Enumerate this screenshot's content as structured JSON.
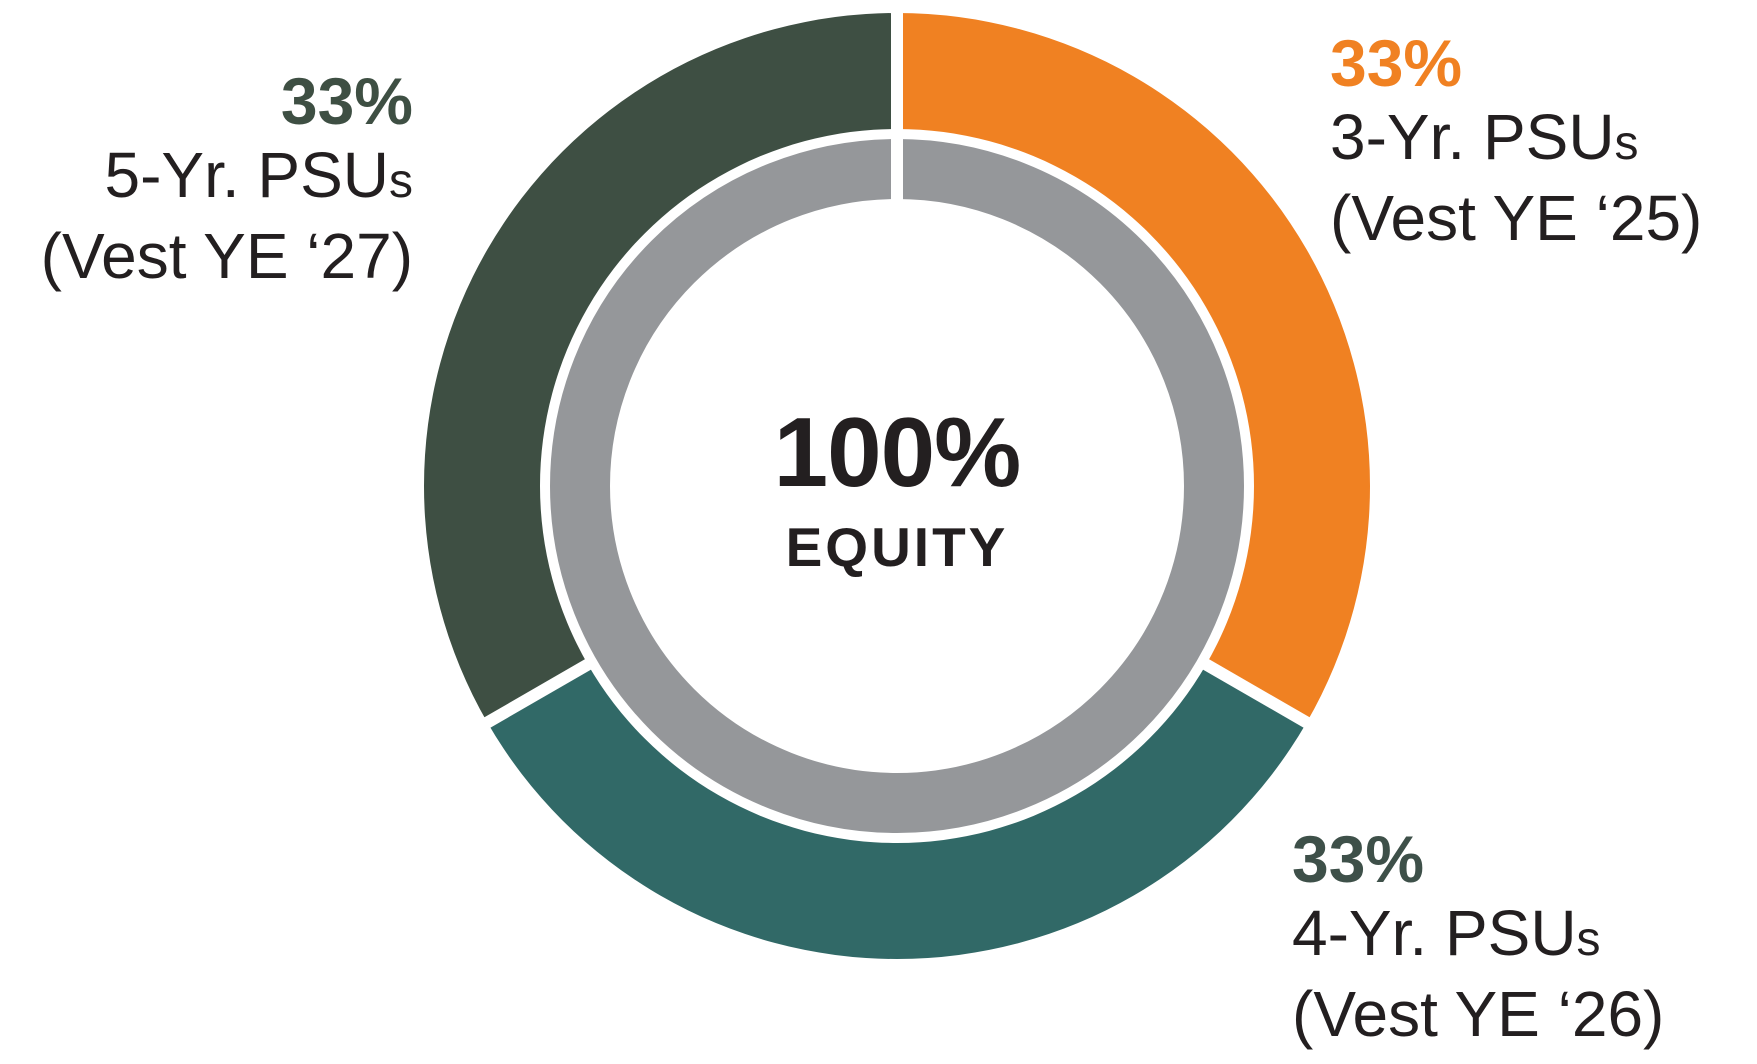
{
  "chart_data": {
    "type": "pie",
    "subtype": "donut",
    "title": "",
    "center_value": "100%",
    "center_label": "EQUITY",
    "total": 100,
    "start_angle_deg": 0,
    "direction": "clockwise",
    "legend_position": "around",
    "background_color": "#FFFFFF",
    "inner_ring_color": "#95979A",
    "center_text_color": "#231F20",
    "label_text_color": "#231F20",
    "slices": [
      {
        "id": "3yr",
        "pct_label": "33%",
        "value": 33,
        "name": "3-Yr. PSU",
        "name_small_suffix": "s",
        "vest_label": "(Vest YE ‘25)",
        "color": "#F08122",
        "pct_color": "#F08122",
        "label_position": "top-right"
      },
      {
        "id": "4yr",
        "pct_label": "33%",
        "value": 33,
        "name": "4-Yr. PSU",
        "name_small_suffix": "s",
        "vest_label": "(Vest YE ‘26)",
        "color": "#316967",
        "pct_color": "#3E5049",
        "label_position": "bottom-right"
      },
      {
        "id": "5yr",
        "pct_label": "33%",
        "value": 33,
        "name": "5-Yr. PSU",
        "name_small_suffix": "s",
        "vest_label": "(Vest YE ‘27)",
        "color": "#3E4F43",
        "pct_color": "#3E4F43",
        "label_position": "top-left"
      }
    ]
  }
}
